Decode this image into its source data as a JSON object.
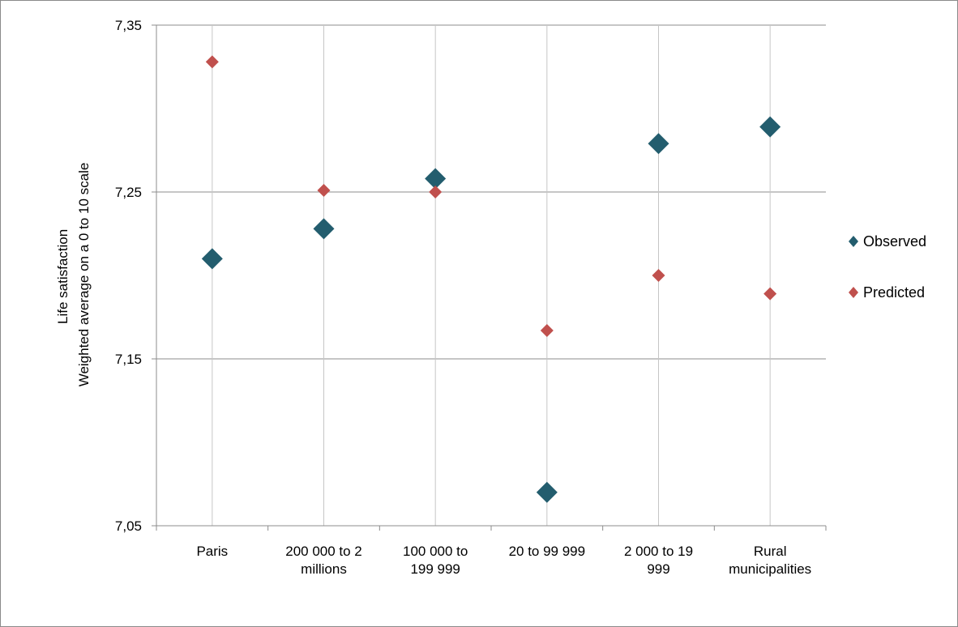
{
  "chart_data": {
    "type": "scatter",
    "categories": [
      [
        "Paris"
      ],
      [
        "200 000 to 2",
        "millions"
      ],
      [
        "100 000 to",
        "199 999"
      ],
      [
        "20 to 99 999"
      ],
      [
        "2 000 to 19",
        "999"
      ],
      [
        "Rural",
        "municipalities"
      ]
    ],
    "series": [
      {
        "name": "Observed",
        "color": "#235d6e",
        "marker": "diamond-large",
        "values": [
          7.21,
          7.228,
          7.258,
          7.07,
          7.279,
          7.289
        ]
      },
      {
        "name": "Predicted",
        "color": "#c0504d",
        "marker": "diamond-small",
        "values": [
          7.328,
          7.251,
          7.25,
          7.167,
          7.2,
          7.189
        ]
      }
    ],
    "ylabel_lines": [
      "Life satisfaction",
      "Weighted average on a 0 to 10 scale"
    ],
    "ylim": [
      7.05,
      7.35
    ],
    "yticks": [
      "7,05",
      "7,15",
      "7,25",
      "7,35"
    ],
    "grid": {
      "horizontal": true,
      "vertical": true
    },
    "legend_position": "right"
  }
}
